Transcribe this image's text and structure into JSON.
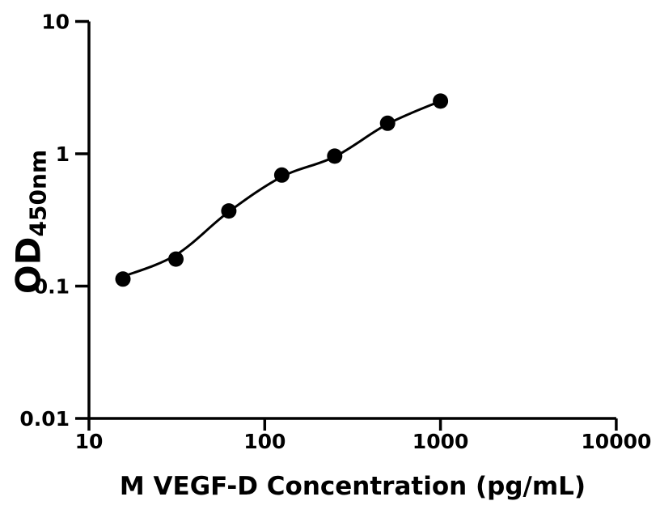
{
  "chart_data": {
    "type": "scatter",
    "title": "",
    "xlabel": "M VEGF-D Concentration (pg/mL)",
    "ylabel_main": "OD",
    "ylabel_sub": "450nm",
    "x_scale": "log",
    "y_scale": "log",
    "xlim": [
      10,
      10000
    ],
    "ylim": [
      0.01,
      10
    ],
    "grid": false,
    "legend": "none",
    "x_ticks": [
      {
        "value": 10,
        "label": "10"
      },
      {
        "value": 100,
        "label": "100"
      },
      {
        "value": 1000,
        "label": "1000"
      },
      {
        "value": 10000,
        "label": "10000"
      }
    ],
    "y_ticks": [
      {
        "value": 10,
        "label": "10"
      },
      {
        "value": 1,
        "label": "1"
      },
      {
        "value": 0.1,
        "label": "0.1"
      },
      {
        "value": 0.01,
        "label": "0.01"
      }
    ],
    "series": [
      {
        "name": "standard-curve-points",
        "x": [
          15.6,
          31.25,
          62.5,
          125,
          250,
          500,
          1000
        ],
        "y": [
          0.113,
          0.16,
          0.37,
          0.69,
          0.96,
          1.7,
          2.5
        ]
      }
    ],
    "fit_curve": {
      "name": "fitted-line",
      "x": [
        15.6,
        31.25,
        62.5,
        125,
        250,
        500,
        1000
      ],
      "y": [
        0.118,
        0.172,
        0.365,
        0.67,
        0.95,
        1.68,
        2.5
      ]
    },
    "colors": {
      "marker": "#000000",
      "line": "#000000",
      "axis": "#000000",
      "text": "#000000",
      "background": "#ffffff"
    }
  }
}
